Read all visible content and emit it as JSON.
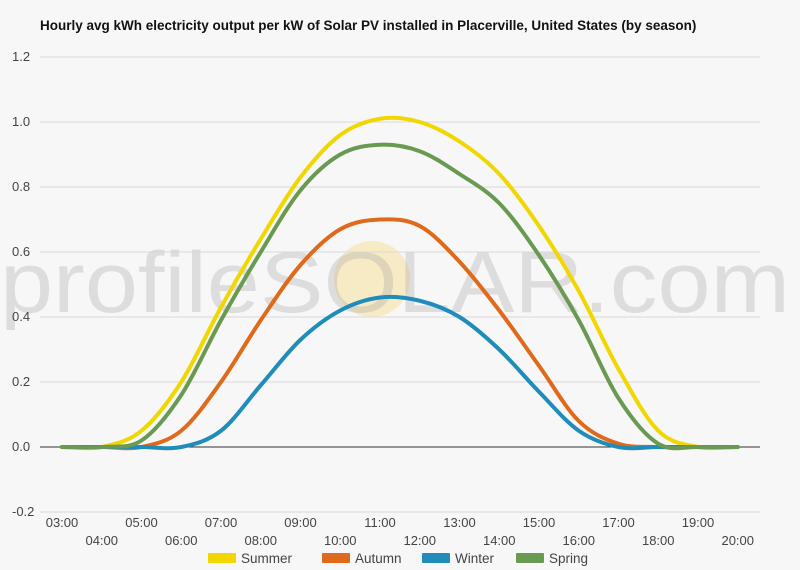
{
  "chart_data": {
    "type": "line",
    "title": "Hourly avg kWh electricity output per kW of Solar PV installed in Placerville, United States (by season)",
    "watermark": "profileSOLAR.com",
    "ylim": [
      -0.2,
      1.2
    ],
    "yticks": [
      "1.2",
      "1.0",
      "0.8",
      "0.6",
      "0.4",
      "0.2",
      "0.0",
      "-0.2"
    ],
    "ytick_values": [
      1.2,
      1.0,
      0.8,
      0.6,
      0.4,
      0.2,
      0.0,
      -0.2
    ],
    "x": [
      "03:00",
      "04:00",
      "05:00",
      "06:00",
      "07:00",
      "08:00",
      "09:00",
      "10:00",
      "11:00",
      "12:00",
      "13:00",
      "14:00",
      "15:00",
      "16:00",
      "17:00",
      "18:00",
      "19:00",
      "20:00"
    ],
    "grid": true,
    "legend_position": "bottom",
    "series": [
      {
        "name": "Summer",
        "color": "#f2d600",
        "values": [
          0.0,
          0.0,
          0.05,
          0.2,
          0.43,
          0.64,
          0.83,
          0.96,
          1.01,
          1.0,
          0.94,
          0.84,
          0.68,
          0.48,
          0.24,
          0.05,
          0.0,
          0.0
        ]
      },
      {
        "name": "Autumn",
        "color": "#e06a1c",
        "values": [
          0.0,
          0.0,
          0.0,
          0.05,
          0.2,
          0.39,
          0.56,
          0.67,
          0.7,
          0.68,
          0.57,
          0.42,
          0.25,
          0.08,
          0.01,
          0.0,
          0.0,
          0.0
        ]
      },
      {
        "name": "Winter",
        "color": "#1f8cba",
        "values": [
          0.0,
          0.0,
          0.0,
          0.0,
          0.05,
          0.19,
          0.33,
          0.42,
          0.46,
          0.45,
          0.4,
          0.3,
          0.17,
          0.05,
          0.0,
          0.0,
          0.0,
          0.0
        ]
      },
      {
        "name": "Spring",
        "color": "#6a9a52",
        "values": [
          0.0,
          0.0,
          0.02,
          0.16,
          0.39,
          0.6,
          0.79,
          0.9,
          0.93,
          0.91,
          0.84,
          0.75,
          0.59,
          0.39,
          0.15,
          0.01,
          0.0,
          0.0
        ]
      }
    ]
  }
}
